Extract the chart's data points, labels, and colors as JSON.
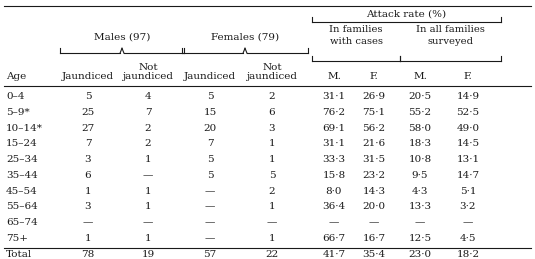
{
  "title": "Attack rate (%)",
  "rows": [
    [
      "0–4",
      "5",
      "4",
      "5",
      "2",
      "31·1",
      "26·9",
      "20·5",
      "14·9"
    ],
    [
      "5–9*",
      "25",
      "7",
      "15",
      "6",
      "76·2",
      "75·1",
      "55·2",
      "52·5"
    ],
    [
      "10–14*",
      "27",
      "2",
      "20",
      "3",
      "69·1",
      "56·2",
      "58·0",
      "49·0"
    ],
    [
      "15–24",
      "7",
      "2",
      "7",
      "1",
      "31·1",
      "21·6",
      "18·3",
      "14·5"
    ],
    [
      "25–34",
      "3",
      "1",
      "5",
      "1",
      "33·3",
      "31·5",
      "10·8",
      "13·1"
    ],
    [
      "35–44",
      "6",
      "—",
      "5",
      "5",
      "15·8",
      "23·2",
      "9·5",
      "14·7"
    ],
    [
      "45–54",
      "1",
      "1",
      "—",
      "2",
      "8·0",
      "14·3",
      "4·3",
      "5·1"
    ],
    [
      "55–64",
      "3",
      "1",
      "—",
      "1",
      "36·4",
      "20·0",
      "13·3",
      "3·2"
    ],
    [
      "65–74",
      "—",
      "—",
      "—",
      "—",
      "—",
      "—",
      "—",
      "—"
    ],
    [
      "75+",
      "1",
      "1",
      "—",
      "1",
      "66·7",
      "16·7",
      "12·5",
      "4·5"
    ],
    [
      "Total",
      "78",
      "19",
      "57",
      "22",
      "41·7",
      "35·4",
      "23·0",
      "18·2"
    ]
  ],
  "background_color": "#ffffff",
  "text_color": "#1a1a1a",
  "font_size": 7.5,
  "header_font_size": 7.5
}
